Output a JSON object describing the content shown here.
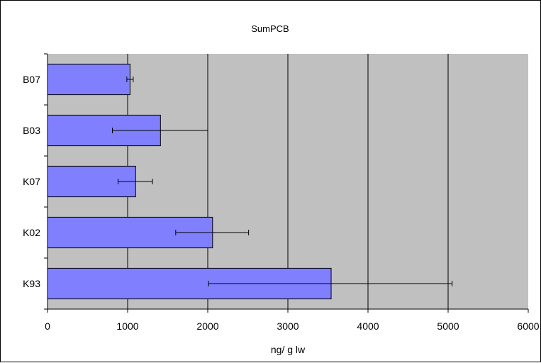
{
  "chart_data": {
    "type": "bar",
    "orientation": "horizontal",
    "title": "SumPCB",
    "xlabel": "ng/ g lw",
    "ylabel": "",
    "xlim": [
      0,
      6000
    ],
    "x_ticks": [
      0,
      1000,
      2000,
      3000,
      4000,
      5000,
      6000
    ],
    "categories": [
      "B07",
      "B03",
      "K07",
      "K02",
      "K93"
    ],
    "values": [
      1030,
      1410,
      1100,
      2060,
      3540
    ],
    "error_low": [
      990,
      810,
      880,
      1600,
      2010
    ],
    "error_high": [
      1070,
      2000,
      1310,
      2510,
      5050
    ],
    "grid": "vertical",
    "legend": "none",
    "colors": {
      "bar_fill": "#8080ff",
      "bar_stroke": "#000000",
      "plot_background": "#c0c0c0",
      "gridline": "#000000"
    }
  }
}
